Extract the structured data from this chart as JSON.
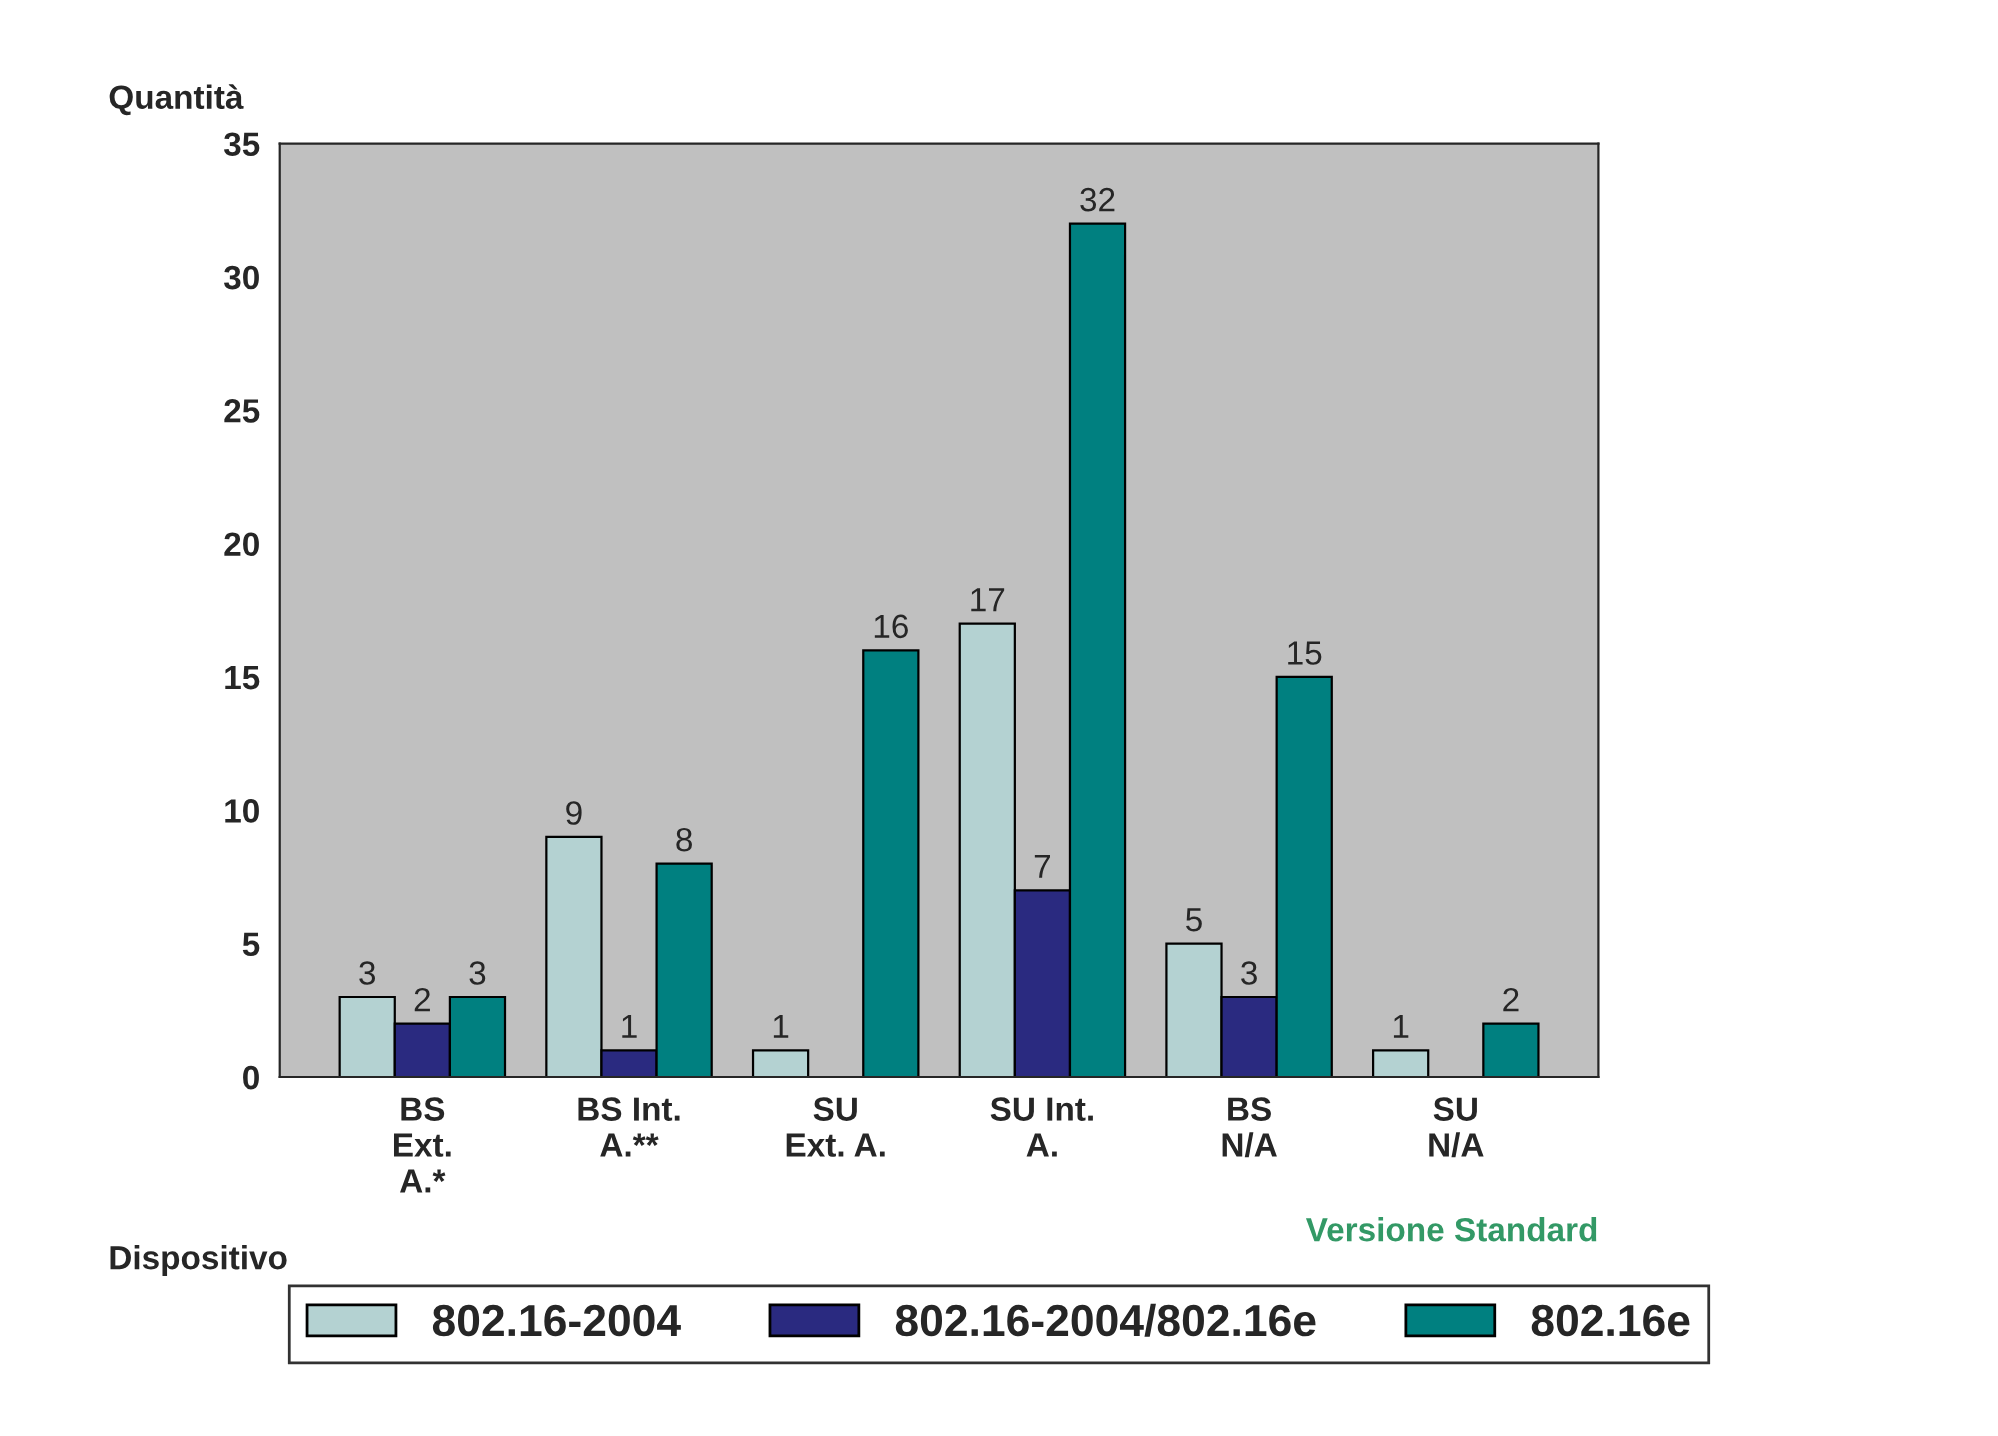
{
  "chart_data": {
    "type": "bar",
    "ylabel": "Quantità",
    "xlabel": "Dispositivo",
    "categories": [
      "BS\nExt.\nA.*",
      "BS Int.\nA.**",
      "SU\nExt. A.",
      "SU Int.\nA.",
      "BS\nN/A",
      "SU\nN/A"
    ],
    "series": [
      {
        "name": "802.16-2004",
        "color": "#b4d2d2",
        "values": [
          3,
          9,
          1,
          17,
          5,
          1
        ]
      },
      {
        "name": "802.16-2004/802.16e",
        "color": "#2a2a80",
        "values": [
          2,
          1,
          null,
          7,
          3,
          null
        ]
      },
      {
        "name": "802.16e",
        "color": "#008080",
        "values": [
          3,
          8,
          16,
          32,
          15,
          2
        ]
      }
    ],
    "ylim": [
      0,
      35
    ],
    "yticks": [
      0,
      5,
      10,
      15,
      20,
      25,
      30,
      35
    ],
    "data_labels": true,
    "grid": false,
    "legend": "bottom",
    "annotations": [
      "Versione Standard"
    ]
  }
}
